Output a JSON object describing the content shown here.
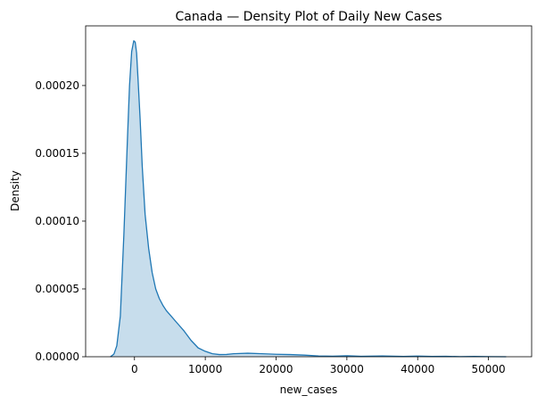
{
  "chart_data": {
    "type": "area",
    "title": "Canada — Density Plot of Daily New Cases",
    "xlabel": "new_cases",
    "ylabel": "Density",
    "xlim": [
      -6900,
      56100
    ],
    "ylim": [
      0,
      0.000244
    ],
    "x_ticks": [
      0,
      10000,
      20000,
      30000,
      40000,
      50000
    ],
    "x_tick_labels": [
      "0",
      "10000",
      "20000",
      "30000",
      "40000",
      "50000"
    ],
    "y_ticks": [
      0,
      5e-05,
      0.0001,
      0.00015,
      0.0002
    ],
    "y_tick_labels": [
      "0.00000",
      "0.00005",
      "0.00010",
      "0.00015",
      "0.00020"
    ],
    "grid": false,
    "legend": "none",
    "colors": {
      "line": "#1f77b4",
      "fill": "#1f77b4",
      "fill_opacity": 0.25
    },
    "series": [
      {
        "x": [
          -3400,
          -2900,
          -2500,
          -2000,
          -1500,
          -1000,
          -700,
          -400,
          -100,
          100,
          300,
          500,
          800,
          1100,
          1500,
          2000,
          2500,
          3000,
          3500,
          4000,
          4500,
          5000,
          6000,
          7000,
          8000,
          9000,
          10000,
          11000,
          12000,
          13000,
          14000,
          16000,
          18000,
          20000,
          22000,
          24000,
          26000,
          28000,
          30000,
          32000,
          35000,
          38000,
          40000,
          42000,
          44000,
          46000,
          48000,
          50000,
          52500
        ],
        "y": [
          0,
          2e-06,
          8e-06,
          3e-05,
          9e-05,
          0.00016,
          0.0002,
          0.000225,
          0.000233,
          0.000232,
          0.000224,
          0.000205,
          0.000175,
          0.00014,
          0.000105,
          8e-05,
          6.2e-05,
          5e-05,
          4.3e-05,
          3.8e-05,
          3.4e-05,
          3.1e-05,
          2.5e-05,
          1.9e-05,
          1.2e-05,
          6.5e-06,
          4e-06,
          2.2e-06,
          1.6e-06,
          1.7e-06,
          2.2e-06,
          2.6e-06,
          2.2e-06,
          1.8e-06,
          1.6e-06,
          1.2e-06,
          6e-07,
          4e-07,
          7e-07,
          3e-07,
          6e-07,
          2e-07,
          5e-07,
          2e-07,
          3e-07,
          1e-07,
          2e-07,
          1e-07,
          0
        ]
      }
    ]
  }
}
